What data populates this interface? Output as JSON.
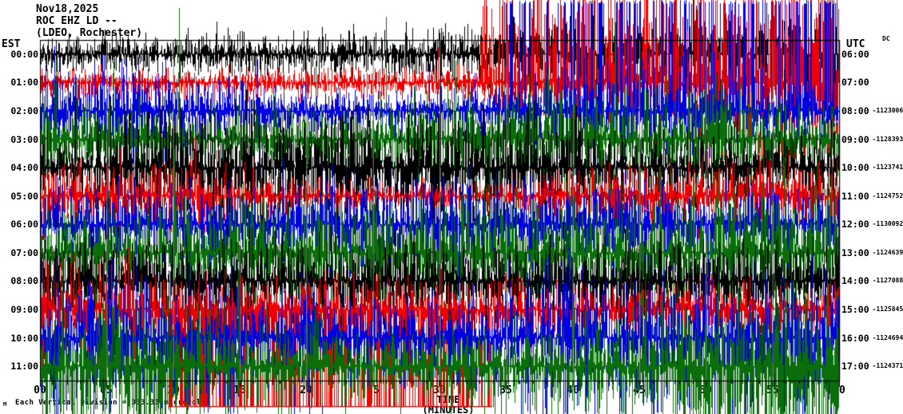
{
  "header": {
    "date": "Nov18,2025",
    "station": "ROC EHZ LD --",
    "location": "(LDEO, Rochester)"
  },
  "left_axis": {
    "label": "EST"
  },
  "right_axis": {
    "label": "UTC",
    "dc_label": "DC"
  },
  "x_axis": {
    "title": "TIME (MINUTES)",
    "ticks": [
      "00",
      "05",
      "10",
      "15",
      "20",
      "25",
      "30",
      "35",
      "40",
      "45",
      "50",
      "55",
      "60"
    ]
  },
  "footer": {
    "prefix": "M",
    "scale_note": "Each Vertical Division = 333.33 microvolts"
  },
  "rows": [
    {
      "est_label": "00:00",
      "utc_label": "06:00",
      "dc_offset": "",
      "color": "black"
    },
    {
      "est_label": "01:00",
      "utc_label": "07:00",
      "dc_offset": "",
      "color": "red"
    },
    {
      "est_label": "02:00",
      "utc_label": "08:00",
      "dc_offset": "-1123006",
      "color": "blue"
    },
    {
      "est_label": "03:00",
      "utc_label": "09:00",
      "dc_offset": "-1128393",
      "color": "green"
    },
    {
      "est_label": "04:00",
      "utc_label": "10:00",
      "dc_offset": "-1123741",
      "color": "black"
    },
    {
      "est_label": "05:00",
      "utc_label": "11:00",
      "dc_offset": "-1124752",
      "color": "red"
    },
    {
      "est_label": "06:00",
      "utc_label": "12:00",
      "dc_offset": "-1130092",
      "color": "blue"
    },
    {
      "est_label": "07:00",
      "utc_label": "13:00",
      "dc_offset": "-1124639",
      "color": "green"
    },
    {
      "est_label": "08:00",
      "utc_label": "14:00",
      "dc_offset": "-1127088",
      "color": "black"
    },
    {
      "est_label": "09:00",
      "utc_label": "15:00",
      "dc_offset": "-1125845",
      "color": "red"
    },
    {
      "est_label": "10:00",
      "utc_label": "16:00",
      "dc_offset": "-1124694",
      "color": "blue"
    },
    {
      "est_label": "11:00",
      "utc_label": "17:00",
      "dc_offset": "-1124371",
      "color": "green"
    }
  ],
  "chart_data": {
    "type": "line",
    "subtype": "seismogram-helicorder",
    "title": "ROC EHZ LD -- (LDEO, Rochester) Nov18,2025",
    "xlabel": "TIME (MINUTES)",
    "x_range_minutes": [
      0,
      60
    ],
    "x_major_tick_interval_minutes": 5,
    "x_minor_tick_interval_minutes": 1,
    "left_time_zone": "EST",
    "right_time_zone": "UTC",
    "rows_per_plot": 12,
    "minutes_per_row": 60,
    "scale_note": "Each Vertical Division = 333.33 microvolts",
    "signal_description": "Extremely high-amplitude continuous noise on every hourly trace; excursions span several row heights so all 12 colored traces overlap into a dense black/red/blue/green mosaic. Blue trace (08:00 UTC row) clips flat at the image top on the right half; a red trace clips flat near the image bottom (y~510) between minutes ~10 and ~34.",
    "series": [
      {
        "est": "00:00",
        "utc": "06:00",
        "color": "black",
        "dc_offset": null
      },
      {
        "est": "01:00",
        "utc": "07:00",
        "color": "red",
        "dc_offset": null
      },
      {
        "est": "02:00",
        "utc": "08:00",
        "color": "blue",
        "dc_offset": -1123006
      },
      {
        "est": "03:00",
        "utc": "09:00",
        "color": "green",
        "dc_offset": -1128393
      },
      {
        "est": "04:00",
        "utc": "10:00",
        "color": "black",
        "dc_offset": -1123741
      },
      {
        "est": "05:00",
        "utc": "11:00",
        "color": "red",
        "dc_offset": -1124752
      },
      {
        "est": "06:00",
        "utc": "12:00",
        "color": "blue",
        "dc_offset": -1130092
      },
      {
        "est": "07:00",
        "utc": "13:00",
        "color": "green",
        "dc_offset": -1124639
      },
      {
        "est": "08:00",
        "utc": "14:00",
        "color": "black",
        "dc_offset": -1127088
      },
      {
        "est": "09:00",
        "utc": "15:00",
        "color": "red",
        "dc_offset": -1125845
      },
      {
        "est": "10:00",
        "utc": "16:00",
        "color": "blue",
        "dc_offset": -1124694
      },
      {
        "est": "11:00",
        "utc": "17:00",
        "color": "green",
        "dc_offset": -1124371
      }
    ],
    "colors": {
      "black": "#000000",
      "red": "#f20000",
      "blue": "#0000e0",
      "green": "#0a6e0a",
      "grid_gray": "#7d7d7d",
      "background": "#ffffff"
    },
    "grid": "gray vertical lines every 5 minutes; black plot border; minor ticks every minute below bottom axis"
  }
}
